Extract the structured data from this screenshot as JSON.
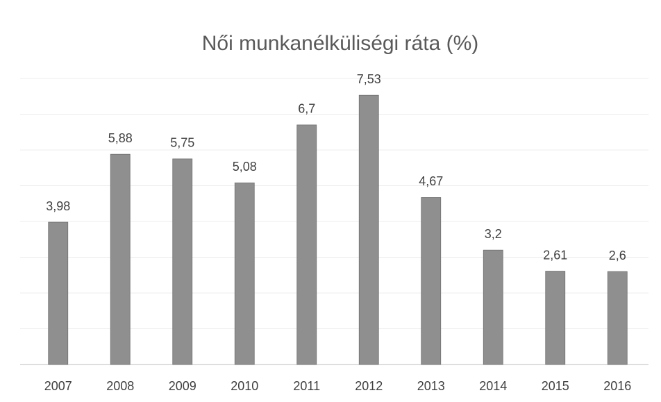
{
  "chart_data": {
    "type": "bar",
    "title": "Női munkanélküliségi ráta (%)",
    "categories": [
      "2007",
      "2008",
      "2009",
      "2010",
      "2011",
      "2012",
      "2013",
      "2014",
      "2015",
      "2016"
    ],
    "values": [
      3.98,
      5.88,
      5.75,
      5.08,
      6.7,
      7.53,
      4.67,
      3.2,
      2.61,
      2.6
    ],
    "value_labels": [
      "3,98",
      "5,88",
      "5,75",
      "5,08",
      "6,7",
      "7,53",
      "4,67",
      "3,2",
      "2,61",
      "2,6"
    ],
    "color": "#8f8f8f",
    "ylim": [
      0,
      8
    ],
    "yticks": [
      0,
      1,
      2,
      3,
      4,
      5,
      6,
      7,
      8
    ],
    "grid": true
  }
}
